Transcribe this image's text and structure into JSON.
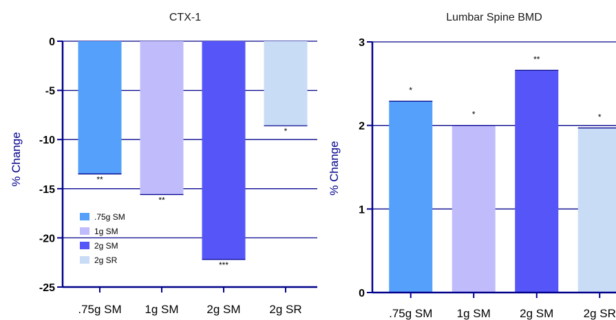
{
  "colors": {
    "axis": "#00008b",
    "series": [
      "#55a0fa",
      "#c0bcfb",
      "#5656f8",
      "#c8dcf6"
    ]
  },
  "chart_data": [
    {
      "type": "bar",
      "title": "CTX-1",
      "ylabel": "% Change",
      "xlabel": "",
      "categories": [
        ".75g SM",
        "1g SM",
        "2g SM",
        "2g SR"
      ],
      "values": [
        -13.5,
        -15.6,
        -22.2,
        -8.6
      ],
      "significance": [
        "**",
        "**",
        "***",
        "*"
      ],
      "ylim": [
        -25,
        0
      ],
      "yticks": [
        0,
        -5,
        -10,
        -15,
        -20,
        -25
      ],
      "yticks_labels": [
        "0",
        "-5",
        "-10",
        "-15",
        "-20",
        "-25"
      ],
      "grid": true,
      "legend": {
        "placement": "bottom-left",
        "entries": [
          ".75g SM",
          "1g SM",
          "2g SM",
          "2g SR"
        ]
      }
    },
    {
      "type": "bar",
      "title": "Lumbar Spine BMD",
      "ylabel": "% Change",
      "xlabel": "",
      "categories": [
        ".75g SM",
        "1g SM",
        "2g SM",
        "2g SR"
      ],
      "values": [
        2.29,
        2.0,
        2.66,
        1.97
      ],
      "significance": [
        "*",
        "*",
        "**",
        "*"
      ],
      "ylim": [
        0,
        3
      ],
      "yticks": [
        0,
        1,
        2,
        3
      ],
      "yticks_labels": [
        "0",
        "1",
        "2",
        "3"
      ],
      "grid": true
    }
  ]
}
